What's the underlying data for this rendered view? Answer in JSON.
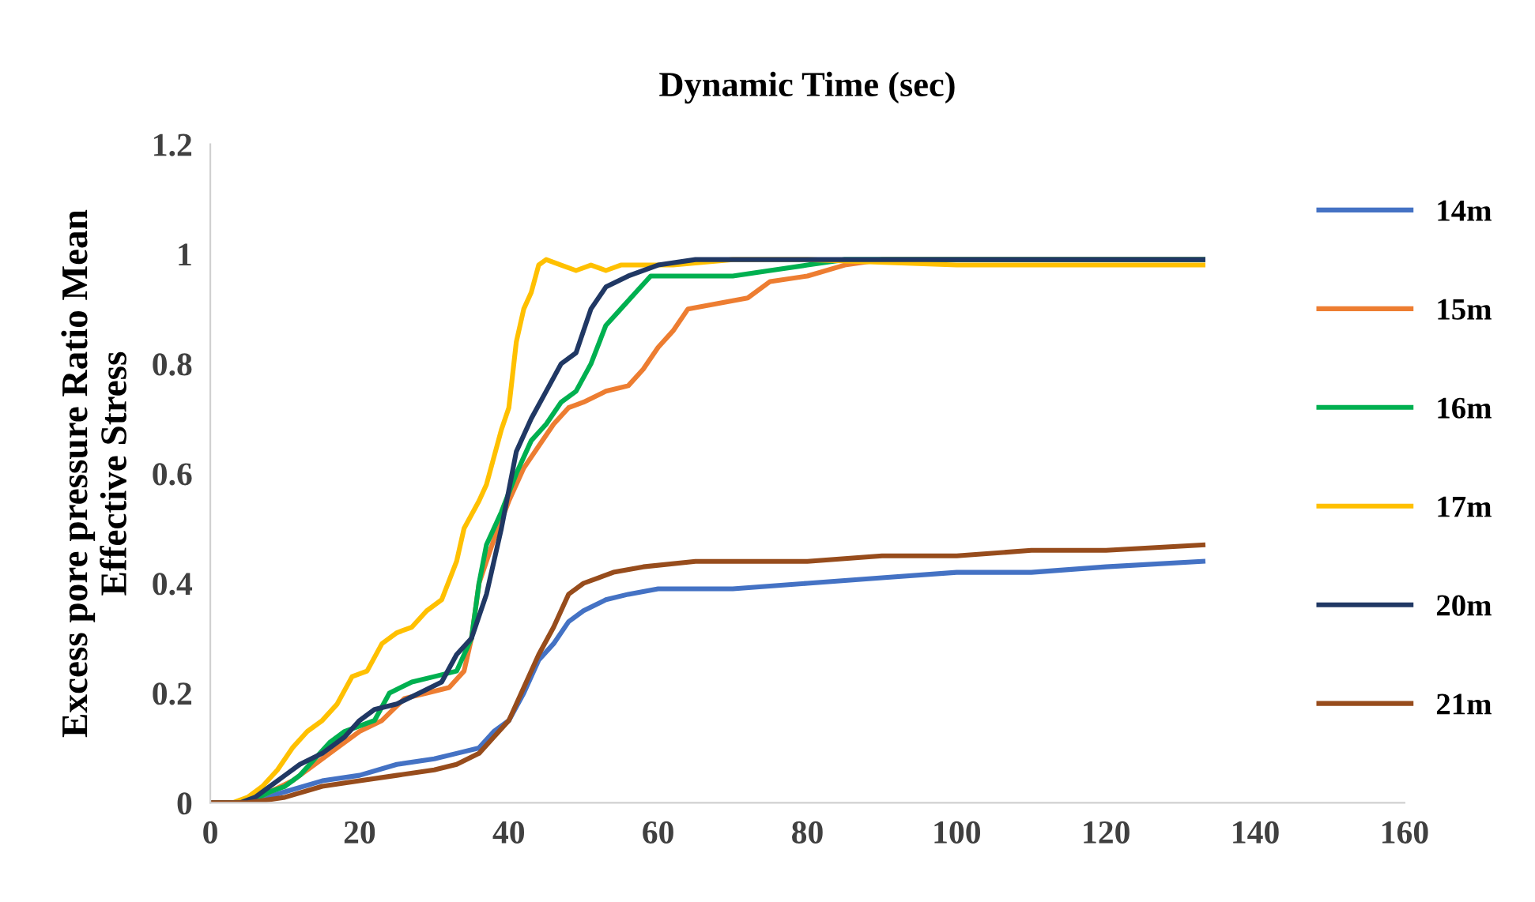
{
  "chart_data": {
    "type": "line",
    "title": "Dynamic Time (sec)",
    "ylabel": "Excess pore pressure Ratio Mean\nEffective Stress",
    "xlim": [
      0,
      160
    ],
    "xticks": [
      0,
      20,
      40,
      60,
      80,
      100,
      120,
      140,
      160
    ],
    "ylim": [
      0,
      1.2
    ],
    "yticks": [
      0,
      0.2,
      0.4,
      0.6,
      0.8,
      1,
      1.2
    ],
    "grid": false,
    "legend": "right",
    "marker": "none",
    "line_style": "solid",
    "series": [
      {
        "name": "14m",
        "color": "#4472c4",
        "x": [
          0,
          5,
          10,
          15,
          20,
          25,
          30,
          33,
          36,
          38,
          40,
          42,
          44,
          46,
          48,
          50,
          53,
          56,
          60,
          70,
          80,
          90,
          100,
          110,
          120,
          133
        ],
        "values": [
          0,
          0,
          0.02,
          0.04,
          0.05,
          0.07,
          0.08,
          0.09,
          0.1,
          0.13,
          0.15,
          0.2,
          0.26,
          0.29,
          0.33,
          0.35,
          0.37,
          0.38,
          0.39,
          0.39,
          0.4,
          0.41,
          0.42,
          0.42,
          0.43,
          0.44
        ]
      },
      {
        "name": "15m",
        "color": "#ed7d31",
        "x": [
          0,
          5,
          8,
          11,
          14,
          17,
          20,
          23,
          26,
          29,
          32,
          34,
          35,
          36,
          38,
          40,
          42,
          44,
          46,
          48,
          50,
          53,
          56,
          58,
          60,
          62,
          64,
          68,
          72,
          75,
          80,
          85,
          90,
          100,
          133
        ],
        "values": [
          0,
          0,
          0.02,
          0.04,
          0.07,
          0.1,
          0.13,
          0.15,
          0.19,
          0.2,
          0.21,
          0.24,
          0.3,
          0.4,
          0.48,
          0.55,
          0.61,
          0.65,
          0.69,
          0.72,
          0.73,
          0.75,
          0.76,
          0.79,
          0.83,
          0.86,
          0.9,
          0.91,
          0.92,
          0.95,
          0.96,
          0.98,
          0.99,
          0.99,
          0.99
        ]
      },
      {
        "name": "16m",
        "color": "#00b050",
        "x": [
          0,
          5,
          8,
          10,
          12,
          14,
          16,
          18,
          20,
          22,
          24,
          27,
          30,
          33,
          35,
          36,
          37,
          39,
          41,
          43,
          45,
          47,
          49,
          51,
          53,
          55,
          57,
          59,
          64,
          70,
          75,
          80,
          85,
          100,
          133
        ],
        "values": [
          0,
          0,
          0.02,
          0.03,
          0.05,
          0.08,
          0.11,
          0.13,
          0.14,
          0.15,
          0.2,
          0.22,
          0.23,
          0.24,
          0.3,
          0.4,
          0.47,
          0.53,
          0.6,
          0.66,
          0.69,
          0.73,
          0.75,
          0.8,
          0.87,
          0.9,
          0.93,
          0.96,
          0.96,
          0.96,
          0.97,
          0.98,
          0.99,
          0.99,
          0.99
        ]
      },
      {
        "name": "17m",
        "color": "#ffc000",
        "x": [
          0,
          3,
          5,
          7,
          9,
          11,
          13,
          15,
          17,
          19,
          21,
          23,
          25,
          27,
          29,
          31,
          33,
          34,
          36,
          37,
          39,
          40,
          41,
          42,
          43,
          44,
          45,
          47,
          49,
          51,
          53,
          55,
          58,
          62,
          70,
          80,
          100,
          120,
          133
        ],
        "values": [
          0,
          0,
          0.01,
          0.03,
          0.06,
          0.1,
          0.13,
          0.15,
          0.18,
          0.23,
          0.24,
          0.29,
          0.31,
          0.32,
          0.35,
          0.37,
          0.44,
          0.5,
          0.55,
          0.58,
          0.68,
          0.72,
          0.84,
          0.9,
          0.93,
          0.98,
          0.99,
          0.98,
          0.97,
          0.98,
          0.97,
          0.98,
          0.98,
          0.98,
          0.99,
          0.99,
          0.98,
          0.98,
          0.98
        ]
      },
      {
        "name": "20m",
        "color": "#203864",
        "x": [
          0,
          4,
          6,
          8,
          10,
          12,
          15,
          18,
          20,
          22,
          25,
          28,
          31,
          33,
          35,
          37,
          39,
          41,
          43,
          45,
          47,
          49,
          51,
          53,
          56,
          60,
          65,
          80,
          100,
          120,
          133
        ],
        "values": [
          0,
          0,
          0.01,
          0.03,
          0.05,
          0.07,
          0.09,
          0.12,
          0.15,
          0.17,
          0.18,
          0.2,
          0.22,
          0.27,
          0.3,
          0.38,
          0.5,
          0.64,
          0.7,
          0.75,
          0.8,
          0.82,
          0.9,
          0.94,
          0.96,
          0.98,
          0.99,
          0.99,
          0.99,
          0.99,
          0.99
        ]
      },
      {
        "name": "21m",
        "color": "#974c1c",
        "x": [
          0,
          5,
          10,
          15,
          20,
          25,
          30,
          33,
          36,
          38,
          40,
          42,
          44,
          46,
          48,
          50,
          52,
          54,
          58,
          65,
          80,
          90,
          100,
          110,
          120,
          133
        ],
        "values": [
          0,
          0,
          0.01,
          0.03,
          0.04,
          0.05,
          0.06,
          0.07,
          0.09,
          0.12,
          0.15,
          0.21,
          0.27,
          0.32,
          0.38,
          0.4,
          0.41,
          0.42,
          0.43,
          0.44,
          0.44,
          0.45,
          0.45,
          0.46,
          0.46,
          0.47
        ]
      }
    ]
  }
}
